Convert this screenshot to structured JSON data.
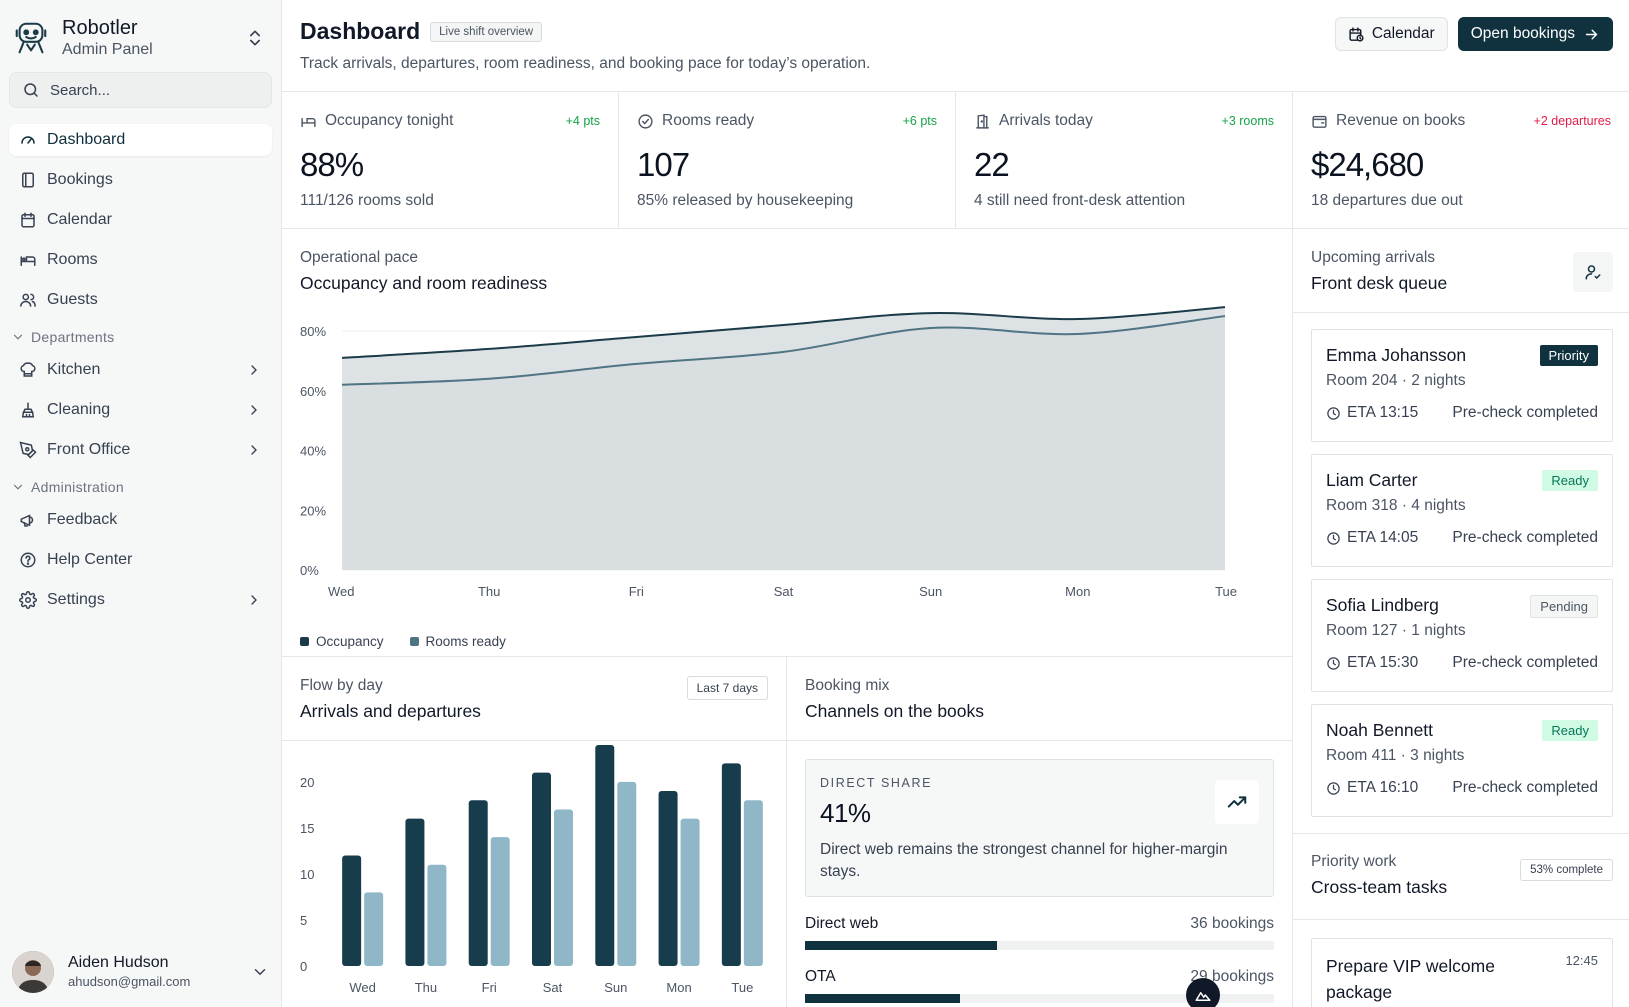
{
  "brand": {
    "name": "Robotler",
    "subtitle": "Admin Panel"
  },
  "search": {
    "placeholder": "Search..."
  },
  "nav": {
    "main": [
      {
        "label": "Dashboard",
        "icon": "gauge-icon",
        "active": true
      },
      {
        "label": "Bookings",
        "icon": "book-icon"
      },
      {
        "label": "Calendar",
        "icon": "calendar-icon"
      },
      {
        "label": "Rooms",
        "icon": "bed-icon"
      },
      {
        "label": "Guests",
        "icon": "users-icon"
      }
    ],
    "departments_label": "Departments",
    "departments": [
      {
        "label": "Kitchen",
        "icon": "chef-hat-icon"
      },
      {
        "label": "Cleaning",
        "icon": "cleaning-icon"
      },
      {
        "label": "Front Office",
        "icon": "pen-tool-icon"
      }
    ],
    "administration_label": "Administration",
    "administration": [
      {
        "label": "Feedback",
        "icon": "megaphone-icon"
      },
      {
        "label": "Help Center",
        "icon": "help-circle-icon"
      },
      {
        "label": "Settings",
        "icon": "gear-icon"
      }
    ]
  },
  "user": {
    "name": "Aiden Hudson",
    "email": "ahudson@gmail.com"
  },
  "header": {
    "title": "Dashboard",
    "badge": "Live shift overview",
    "subtitle": "Track arrivals, departures, room readiness, and booking pace for today’s operation.",
    "calendar_label": "Calendar",
    "open_bookings_label": "Open bookings"
  },
  "stats": [
    {
      "label": "Occupancy tonight",
      "delta": "+4 pts",
      "value": "88%",
      "sub": "111/126 rooms sold",
      "icon": "bed-icon",
      "positive": true
    },
    {
      "label": "Rooms ready",
      "delta": "+6 pts",
      "value": "107",
      "sub": "85% released by housekeeping",
      "icon": "check-circle-icon",
      "positive": true
    },
    {
      "label": "Arrivals today",
      "delta": "+3 rooms",
      "value": "22",
      "sub": "4 still need front-desk attention",
      "icon": "door-icon",
      "positive": true
    },
    {
      "label": "Revenue on books",
      "delta": "+2 departures",
      "value": "$24,680",
      "sub": "18 departures due out",
      "icon": "wallet-icon",
      "positive": false
    }
  ],
  "pace": {
    "kicker": "Operational pace",
    "title": "Occupancy and room readiness"
  },
  "chart_data": [
    {
      "type": "area",
      "x": [
        "Wed",
        "Thu",
        "Fri",
        "Sat",
        "Sun",
        "Mon",
        "Tue"
      ],
      "ylim": [
        0,
        80
      ],
      "yticks": [
        "0%",
        "20%",
        "40%",
        "60%",
        "80%"
      ],
      "series": [
        {
          "name": "Occupancy",
          "values": [
            71,
            74,
            78,
            82,
            86,
            84,
            88
          ],
          "color": "#1c3b4a"
        },
        {
          "name": "Rooms ready",
          "values": [
            62,
            64,
            69,
            73,
            81,
            79,
            85
          ],
          "color": "#4f7484"
        }
      ]
    },
    {
      "type": "bar",
      "categories": [
        "Wed",
        "Thu",
        "Fri",
        "Sat",
        "Sun",
        "Mon",
        "Tue"
      ],
      "ylim": [
        0,
        24
      ],
      "yticks": [
        "0",
        "5",
        "10",
        "15",
        "20"
      ],
      "series": [
        {
          "values": [
            12,
            16,
            18,
            21,
            24,
            19,
            22
          ],
          "color": "#173c4c"
        },
        {
          "values": [
            8,
            11,
            14,
            17,
            20,
            16,
            18
          ],
          "color": "#8fb7c8"
        }
      ]
    }
  ],
  "flow": {
    "kicker": "Flow by day",
    "title": "Arrivals and departures",
    "range": "Last 7 days"
  },
  "mix": {
    "kicker": "Booking mix",
    "title": "Channels on the books",
    "direct_kicker": "DIRECT SHARE",
    "direct_value": "41%",
    "direct_text": "Direct web remains the strongest channel for higher-margin stays.",
    "channels": [
      {
        "label": "Direct web",
        "count": "36 bookings",
        "share": 0.41
      },
      {
        "label": "OTA",
        "count": "29 bookings",
        "share": 0.33
      }
    ]
  },
  "queue": {
    "kicker": "Upcoming arrivals",
    "title": "Front desk queue",
    "guests": [
      {
        "name": "Emma Johansson",
        "room": "Room 204 · 2 nights",
        "eta": "ETA 13:15",
        "note": "Pre-check completed",
        "status": "Priority"
      },
      {
        "name": "Liam Carter",
        "room": "Room 318 · 4 nights",
        "eta": "ETA 14:05",
        "note": "Pre-check completed",
        "status": "Ready"
      },
      {
        "name": "Sofia Lindberg",
        "room": "Room 127 · 1 nights",
        "eta": "ETA 15:30",
        "note": "Pre-check completed",
        "status": "Pending"
      },
      {
        "name": "Noah Bennett",
        "room": "Room 411 · 3 nights",
        "eta": "ETA 16:10",
        "note": "Pre-check completed",
        "status": "Ready"
      }
    ]
  },
  "priority": {
    "kicker": "Priority work",
    "title": "Cross-team tasks",
    "progress": "53% complete",
    "tasks": [
      {
        "title": "Prepare VIP welcome package",
        "time": "12:45"
      }
    ]
  }
}
